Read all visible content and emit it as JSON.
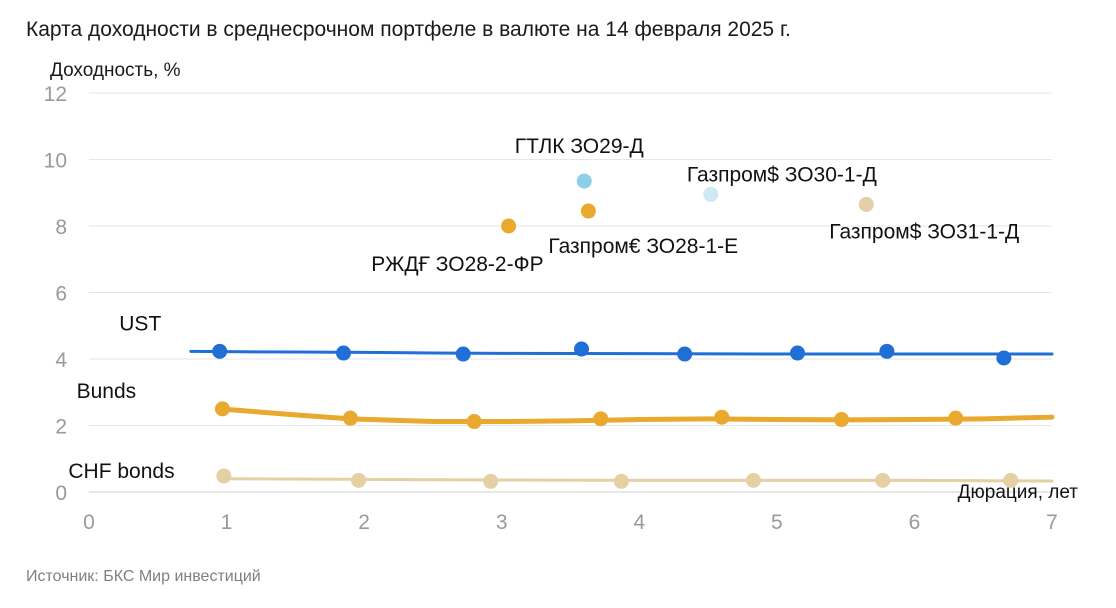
{
  "title": "Карта доходности в среднесрочном портфеле в валюте на 14 февраля 2025 г.",
  "source": "Источник: БКС Мир инвестиций",
  "chart_data": {
    "type": "scatter",
    "ylabel": "Доходность, %",
    "xlabel": "Дюрация, лет",
    "xlim": [
      0,
      7
    ],
    "ylim": [
      0,
      12
    ],
    "xticks": [
      "0",
      "1",
      "2",
      "3",
      "4",
      "5",
      "6",
      "7"
    ],
    "yticks": [
      "0",
      "2",
      "4",
      "6",
      "8",
      "10",
      "12"
    ],
    "grid": "horizontal",
    "colors": {
      "ust": "#1f6fd6",
      "bunds": "#e8a92e",
      "chf": "#e5d0a4",
      "gtlk": "#8ecfe8",
      "gazprom_usd30": "#cde9f4",
      "gazprom_usd31": "#e5cfa8",
      "rzd": "#e8a92e",
      "gazprom_eur": "#e8a92e"
    },
    "curves": [
      {
        "name": "UST",
        "color_key": "ust",
        "line": [
          [
            0.74,
            4.23
          ],
          [
            1.0,
            4.22
          ],
          [
            1.5,
            4.21
          ],
          [
            2.0,
            4.2
          ],
          [
            2.5,
            4.18
          ],
          [
            3.0,
            4.17
          ],
          [
            4.0,
            4.16
          ],
          [
            5.0,
            4.15
          ],
          [
            6.0,
            4.15
          ],
          [
            7.0,
            4.15
          ]
        ],
        "points": [
          [
            0.95,
            4.23
          ],
          [
            1.85,
            4.18
          ],
          [
            2.72,
            4.15
          ],
          [
            3.58,
            4.3
          ],
          [
            4.33,
            4.15
          ],
          [
            5.15,
            4.18
          ],
          [
            5.8,
            4.23
          ],
          [
            6.65,
            4.03
          ]
        ]
      },
      {
        "name": "Bunds",
        "color_key": "bunds",
        "line": [
          [
            0.95,
            2.5
          ],
          [
            1.5,
            2.32
          ],
          [
            1.9,
            2.2
          ],
          [
            2.5,
            2.12
          ],
          [
            3.0,
            2.12
          ],
          [
            3.5,
            2.14
          ],
          [
            4.0,
            2.18
          ],
          [
            4.5,
            2.2
          ],
          [
            5.0,
            2.18
          ],
          [
            5.5,
            2.17
          ],
          [
            6.0,
            2.18
          ],
          [
            6.5,
            2.2
          ],
          [
            7.0,
            2.25
          ]
        ],
        "points": [
          [
            0.97,
            2.5
          ],
          [
            1.9,
            2.22
          ],
          [
            2.8,
            2.12
          ],
          [
            3.72,
            2.2
          ],
          [
            4.6,
            2.25
          ],
          [
            5.47,
            2.18
          ],
          [
            6.3,
            2.22
          ]
        ]
      },
      {
        "name": "CHF bonds",
        "color_key": "chf",
        "line": [
          [
            0.95,
            0.4
          ],
          [
            2.0,
            0.38
          ],
          [
            3.0,
            0.36
          ],
          [
            4.0,
            0.35
          ],
          [
            5.0,
            0.35
          ],
          [
            6.0,
            0.35
          ],
          [
            7.0,
            0.33
          ]
        ],
        "points": [
          [
            0.98,
            0.48
          ],
          [
            1.96,
            0.35
          ],
          [
            2.92,
            0.32
          ],
          [
            3.87,
            0.32
          ],
          [
            4.83,
            0.35
          ],
          [
            5.77,
            0.35
          ],
          [
            6.7,
            0.35
          ]
        ]
      }
    ],
    "bonds": [
      {
        "label": "РЖДҒ ЗО28-2-ФР",
        "x": 3.05,
        "y": 8.0,
        "color_key": "rzd",
        "label_pos": "below-left"
      },
      {
        "label": "ГТЛК ЗО29-Д",
        "x": 3.6,
        "y": 9.35,
        "color_key": "gtlk",
        "label_pos": "above"
      },
      {
        "label": "Газпром€ ЗО28-1-Е",
        "x": 3.63,
        "y": 8.45,
        "color_key": "gazprom_eur",
        "label_pos": "below-right"
      },
      {
        "label": "Газпром$ ЗО30-1-Д",
        "x": 4.52,
        "y": 8.95,
        "color_key": "gazprom_usd30",
        "label_pos": "above-right"
      },
      {
        "label": "Газпром$ ЗО31-1-Д",
        "x": 5.65,
        "y": 8.65,
        "color_key": "gazprom_usd31",
        "label_pos": "below-right"
      }
    ]
  }
}
